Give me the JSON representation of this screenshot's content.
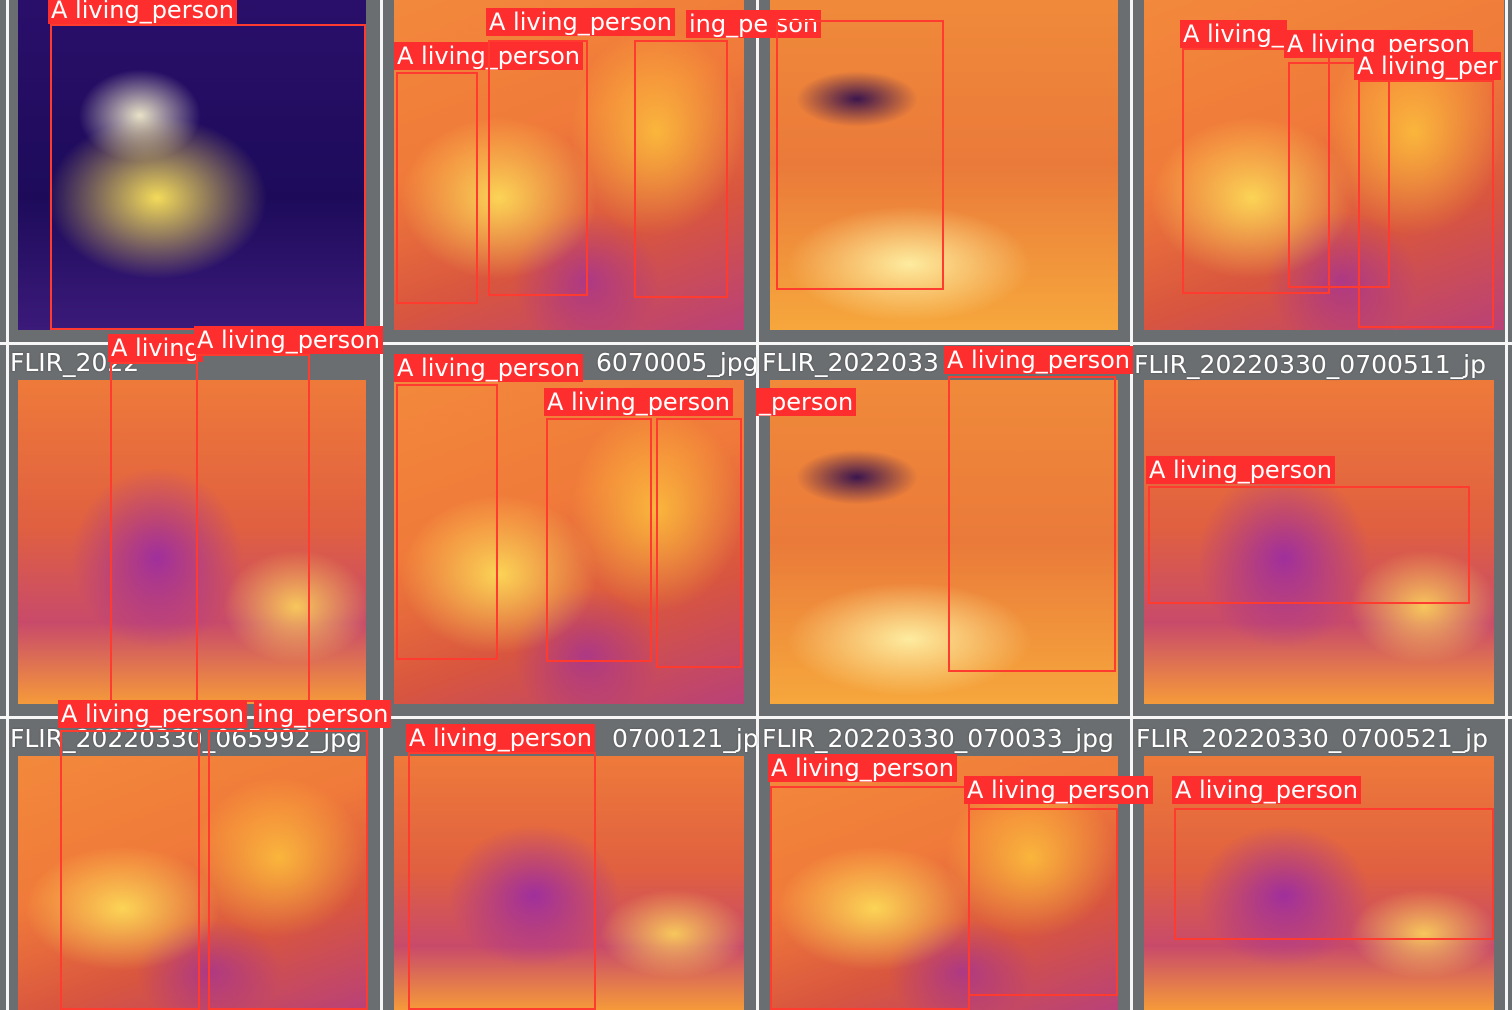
{
  "detection_label": "A living_person",
  "label_fragments": {
    "tail_person": "ing_pe son",
    "tail_person2": "ing_person",
    "short_living": "A living",
    "short_person": "_person",
    "partial": "A living_per",
    "cut_living": "A living_"
  },
  "filenames": {
    "row2_col1": "FLIR_2022",
    "row2_col2": "6070005_jpg",
    "row2_col3": "FLIR_2022033",
    "row2_col4": "FLIR_20220330_0700511_jp",
    "row3_col1": "FLIR_20220330_065992_jpg",
    "row3_col2": "0700121_jp",
    "row3_col3": "FLIR_20220330_070033_jpg",
    "row3_col4": "FLIR_20220330_0700521_jp"
  },
  "colors": {
    "box": "#ff3b30",
    "label_bg": "#ff2e2e",
    "label_text": "#ffffff",
    "grid_line": "#f6f6f6",
    "background": "#6b6e70"
  }
}
